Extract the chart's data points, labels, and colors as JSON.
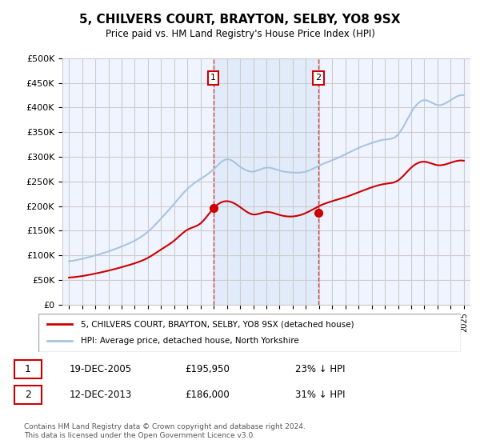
{
  "title": "5, CHILVERS COURT, BRAYTON, SELBY, YO8 9SX",
  "subtitle": "Price paid vs. HM Land Registry's House Price Index (HPI)",
  "ylabel_ticks": [
    "£0",
    "£50K",
    "£100K",
    "£150K",
    "£200K",
    "£250K",
    "£300K",
    "£350K",
    "£400K",
    "£450K",
    "£500K"
  ],
  "ytick_values": [
    0,
    50000,
    100000,
    150000,
    200000,
    250000,
    300000,
    350000,
    400000,
    450000,
    500000
  ],
  "xlim_start": 1994.5,
  "xlim_end": 2025.5,
  "ylim": [
    0,
    500000
  ],
  "hpi_color": "#a8c4e0",
  "price_color": "#cc0000",
  "sale1_date": 2005.96,
  "sale1_price": 195950,
  "sale2_date": 2013.96,
  "sale2_price": 186000,
  "sale1_label": "1",
  "sale2_label": "2",
  "legend_house": "5, CHILVERS COURT, BRAYTON, SELBY, YO8 9SX (detached house)",
  "legend_hpi": "HPI: Average price, detached house, North Yorkshire",
  "table_row1": [
    "1",
    "19-DEC-2005",
    "£195,950",
    "23% ↓ HPI"
  ],
  "table_row2": [
    "2",
    "12-DEC-2013",
    "£186,000",
    "31% ↓ HPI"
  ],
  "footer": "Contains HM Land Registry data © Crown copyright and database right 2024.\nThis data is licensed under the Open Government Licence v3.0.",
  "background_plot": "#f0f4ff",
  "background_shade": "#dce8f8",
  "grid_color": "#cccccc"
}
